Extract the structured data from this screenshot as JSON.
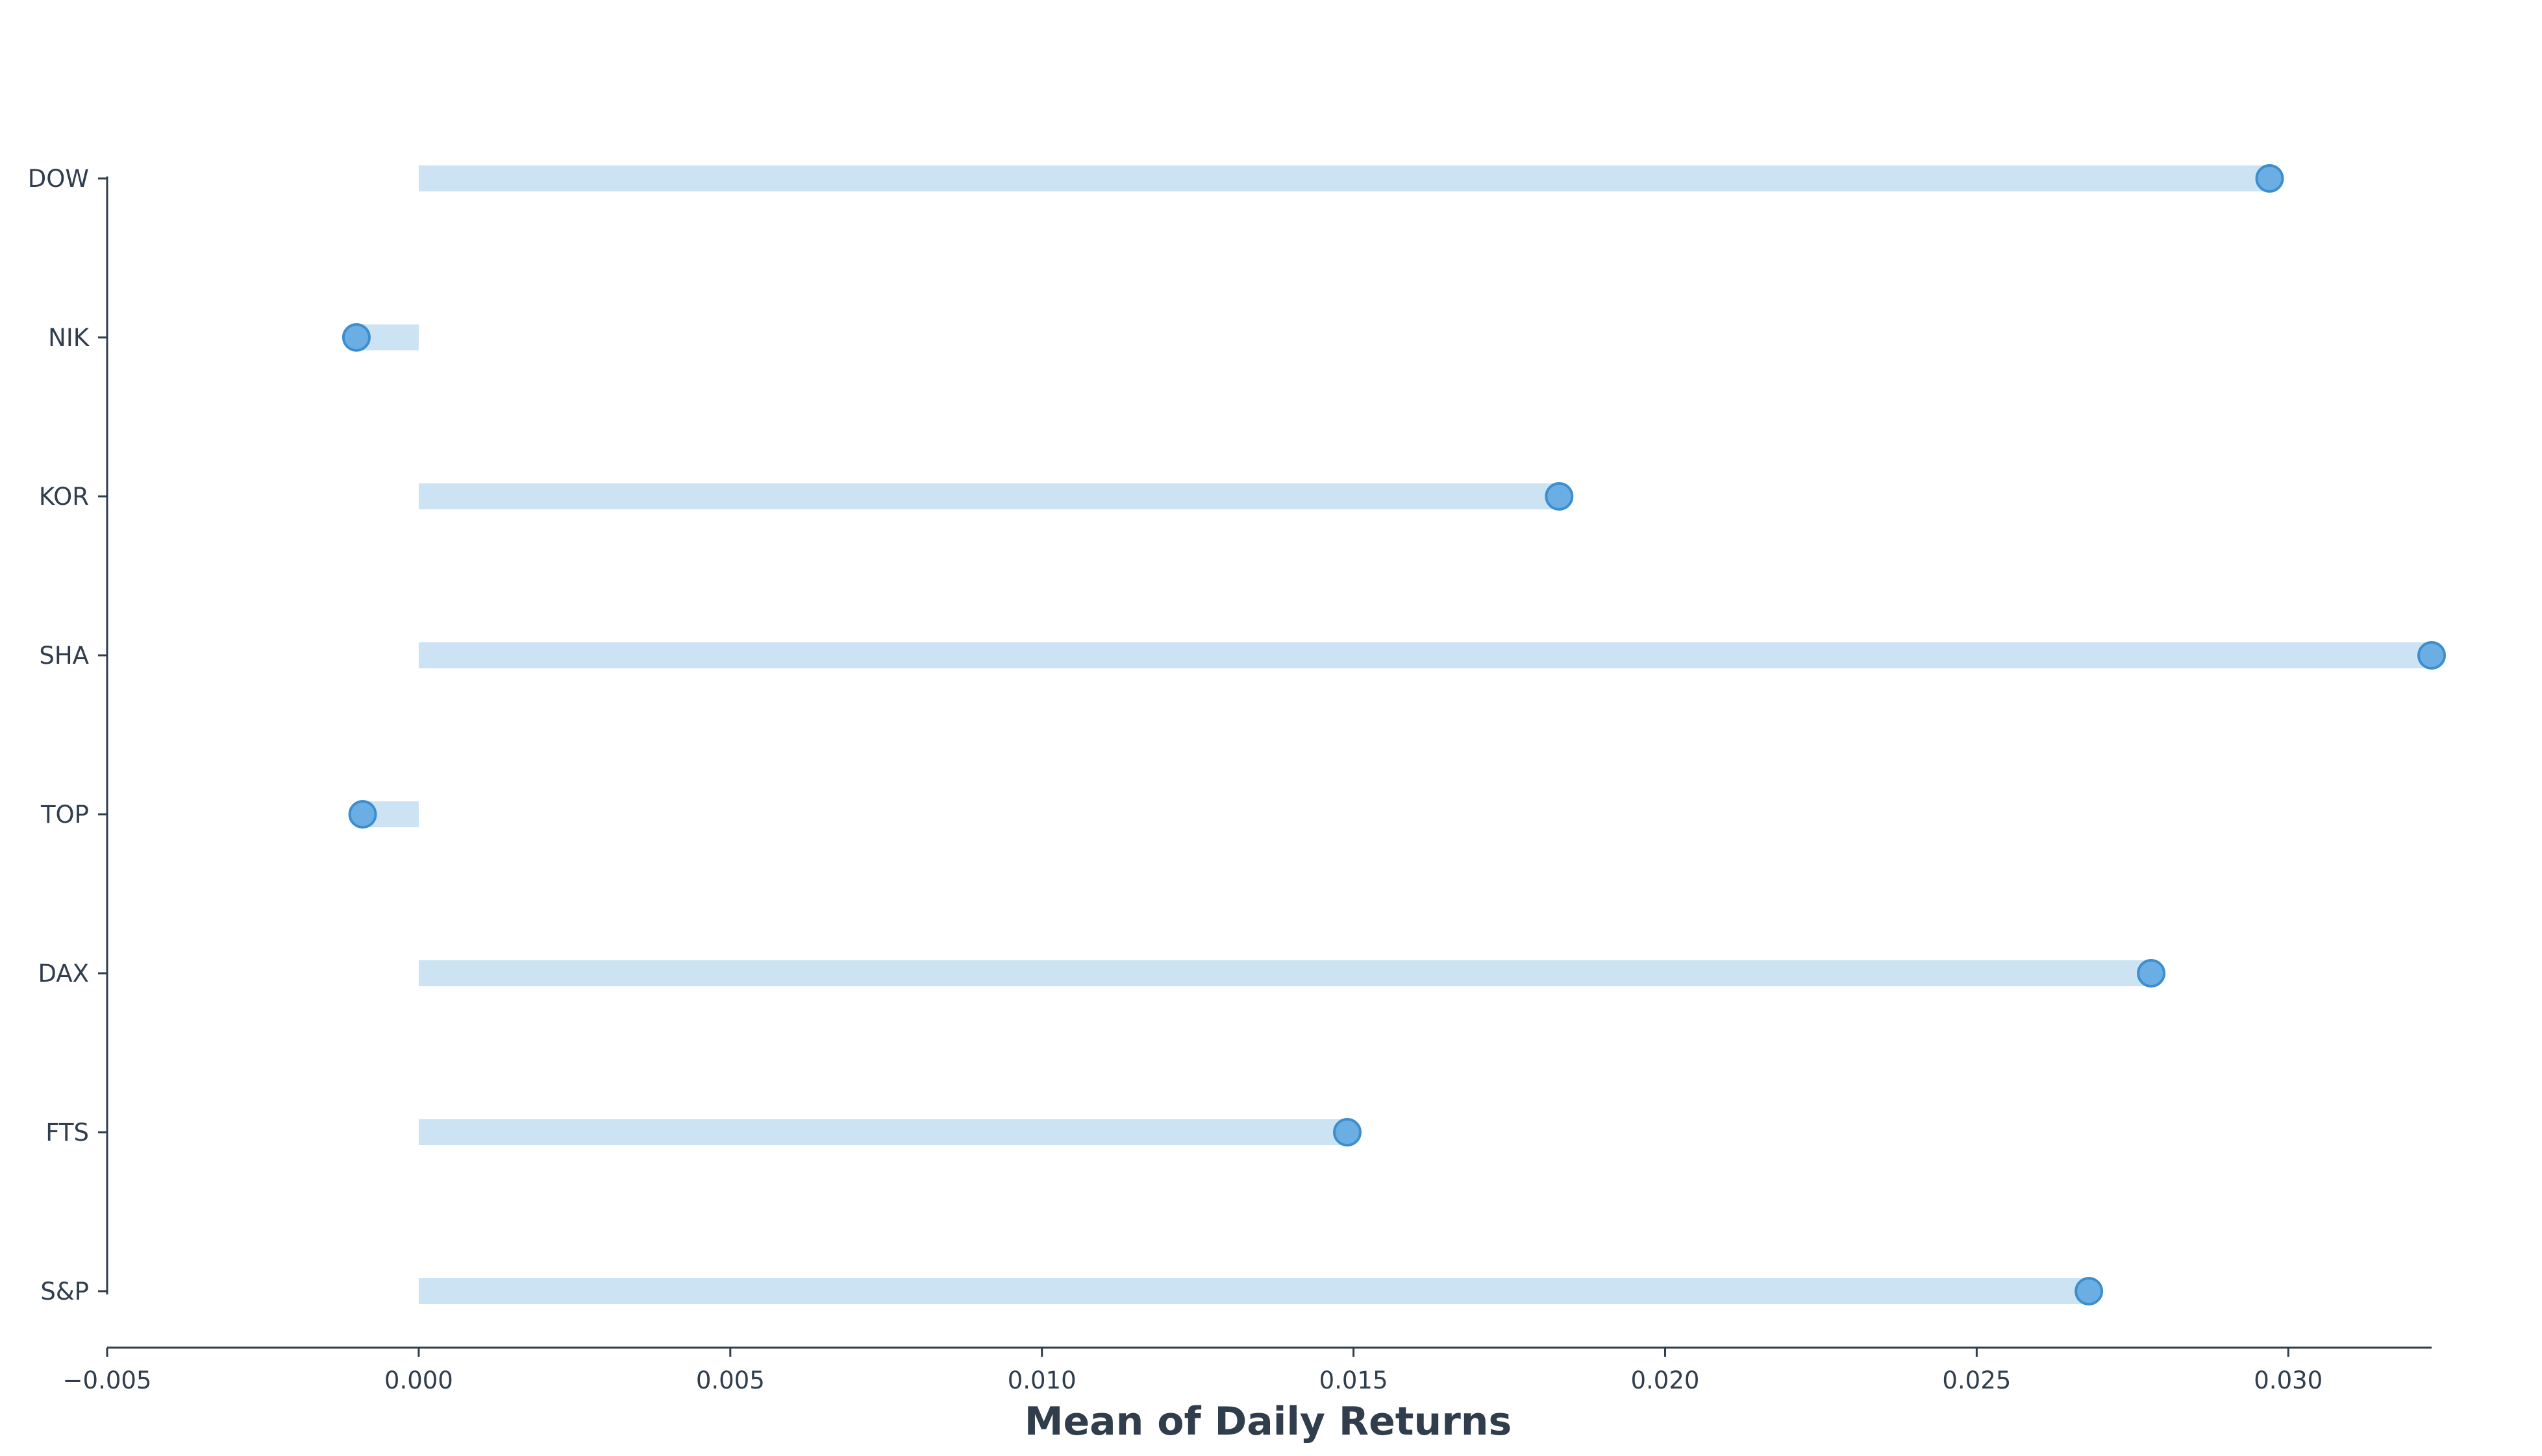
{
  "chart_data": {
    "type": "lollipop",
    "title": "",
    "xlabel": "Mean of Daily Returns",
    "ylabel": "",
    "xlim": [
      -0.005,
      0.0323
    ],
    "x_ticks": [
      -0.005,
      0.0,
      0.005,
      0.01,
      0.015,
      0.02,
      0.025,
      0.03
    ],
    "x_tick_labels": [
      "−0.005",
      "0.000",
      "0.005",
      "0.010",
      "0.015",
      "0.020",
      "0.025",
      "0.030"
    ],
    "categories": [
      "DOW",
      "NIK",
      "KOR",
      "SHA",
      "TOP",
      "DAX",
      "FTS",
      "S&P"
    ],
    "values": [
      0.0297,
      -0.001,
      0.0183,
      0.0323,
      -0.0009,
      0.0278,
      0.0149,
      0.0268
    ],
    "grid": false,
    "legend": "none",
    "colors": {
      "stem": "#cce3f4",
      "marker_fill": "#6aaee3",
      "marker_edge": "#3d8ecf",
      "axis": "#2f3d4c",
      "text": "#2f3d4c"
    }
  }
}
